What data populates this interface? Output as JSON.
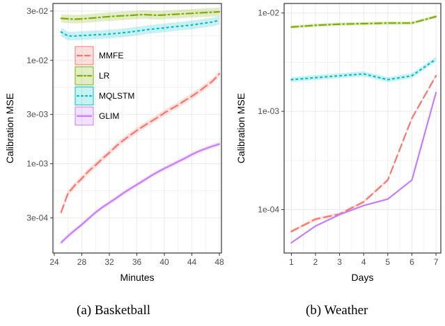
{
  "colors": {
    "MMFE": "#F8766D",
    "LR": "#7CAE00",
    "MQLSTM": "#00BFC4",
    "GLIM": "#C77CFF",
    "panel_bg": "#ffffff",
    "grid": "#ebebeb",
    "axis": "#333333"
  },
  "captions": [
    "(a) Basketball",
    "(b) Weather"
  ],
  "chart_data": [
    {
      "type": "line",
      "title": "",
      "xlabel": "Minutes",
      "ylabel": "Calibration MSE",
      "y_scale": "log10",
      "xlim": [
        23.8,
        48.3
      ],
      "ylim": [
        0.000137,
        0.0355
      ],
      "x_ticks": [
        24,
        28,
        32,
        36,
        40,
        44,
        48
      ],
      "x_tick_labels": [
        "24",
        "28",
        "32",
        "36",
        "40",
        "44",
        "48"
      ],
      "y_ticks": [
        0.0003,
        0.001,
        0.003,
        0.01,
        0.03
      ],
      "y_tick_labels": [
        "3e-04",
        "1e-03",
        "3e-03",
        "1e-02",
        "3e-02"
      ],
      "grid": true,
      "legend": {
        "placement": "top-left",
        "entries": [
          {
            "name": "MMFE",
            "style": "longdash"
          },
          {
            "name": "LR",
            "style": "dotdash"
          },
          {
            "name": "MQLSTM",
            "style": "dotted"
          },
          {
            "name": "GLIM",
            "style": "solid"
          }
        ]
      },
      "x": [
        25,
        26,
        27,
        28,
        29,
        30,
        31,
        32,
        33,
        34,
        35,
        36,
        37,
        38,
        39,
        40,
        41,
        42,
        43,
        44,
        45,
        46,
        47,
        48
      ],
      "series": [
        {
          "name": "MMFE",
          "style": "longdash",
          "band": 0.07,
          "values": [
            0.00034,
            0.00052,
            0.00062,
            0.00072,
            0.00085,
            0.00097,
            0.00112,
            0.00128,
            0.00148,
            0.00168,
            0.00188,
            0.0021,
            0.00232,
            0.00255,
            0.0028,
            0.0031,
            0.0034,
            0.0037,
            0.0041,
            0.0045,
            0.005,
            0.0056,
            0.0063,
            0.0074
          ]
        },
        {
          "name": "LR",
          "style": "dotdash",
          "band": 0.1,
          "values": [
            0.0255,
            0.0252,
            0.025,
            0.0252,
            0.0255,
            0.0258,
            0.0262,
            0.0265,
            0.0268,
            0.027,
            0.0272,
            0.0275,
            0.0277,
            0.0275,
            0.0273,
            0.0275,
            0.0278,
            0.028,
            0.0283,
            0.0285,
            0.0288,
            0.029,
            0.0292,
            0.0295
          ]
        },
        {
          "name": "MQLSTM",
          "style": "dotted",
          "band": 0.1,
          "values": [
            0.0188,
            0.0172,
            0.0172,
            0.0174,
            0.0175,
            0.0177,
            0.0178,
            0.018,
            0.0182,
            0.0185,
            0.0188,
            0.0192,
            0.0196,
            0.02,
            0.0203,
            0.0206,
            0.021,
            0.0213,
            0.0216,
            0.022,
            0.0225,
            0.023,
            0.0235,
            0.0245
          ]
        },
        {
          "name": "GLIM",
          "style": "solid",
          "band": 0.05,
          "values": [
            0.000173,
            0.0002,
            0.000228,
            0.000258,
            0.000296,
            0.000338,
            0.00038,
            0.00042,
            0.000465,
            0.000518,
            0.000572,
            0.000628,
            0.00069,
            0.00076,
            0.00083,
            0.0009,
            0.00097,
            0.00105,
            0.00113,
            0.00123,
            0.00132,
            0.0014,
            0.00148,
            0.00155
          ]
        }
      ]
    },
    {
      "type": "line",
      "title": "",
      "xlabel": "Days",
      "ylabel": "Calibration MSE",
      "y_scale": "log10",
      "xlim": [
        0.7,
        7.2
      ],
      "ylim": [
        3.62e-05,
        0.0125
      ],
      "x_ticks": [
        1,
        2,
        3,
        4,
        5,
        6,
        7
      ],
      "x_tick_labels": [
        "1",
        "2",
        "3",
        "4",
        "5",
        "6",
        "7"
      ],
      "y_ticks": [
        0.0001,
        0.001,
        0.01
      ],
      "y_tick_labels": [
        "1e-04",
        "1e-03",
        "1e-02"
      ],
      "grid": true,
      "x": [
        1,
        2,
        3,
        4,
        5,
        6,
        7
      ],
      "series": [
        {
          "name": "MMFE",
          "style": "longdash",
          "band": 0.04,
          "values": [
            6e-05,
            8e-05,
            9e-05,
            0.00012,
            0.0002,
            0.00085,
            0.0023
          ]
        },
        {
          "name": "LR",
          "style": "dotdash",
          "band": 0.04,
          "values": [
            0.0072,
            0.0075,
            0.0077,
            0.0078,
            0.0079,
            0.0079,
            0.0092
          ]
        },
        {
          "name": "MQLSTM",
          "style": "dotted",
          "band": 0.06,
          "values": [
            0.0021,
            0.0022,
            0.0023,
            0.0024,
            0.0021,
            0.0023,
            0.0034
          ]
        },
        {
          "name": "GLIM",
          "style": "solid",
          "band": 0.02,
          "values": [
            4.6e-05,
            6.8e-05,
            8.9e-05,
            0.00011,
            0.000128,
            0.0002,
            0.00155
          ]
        }
      ]
    }
  ]
}
